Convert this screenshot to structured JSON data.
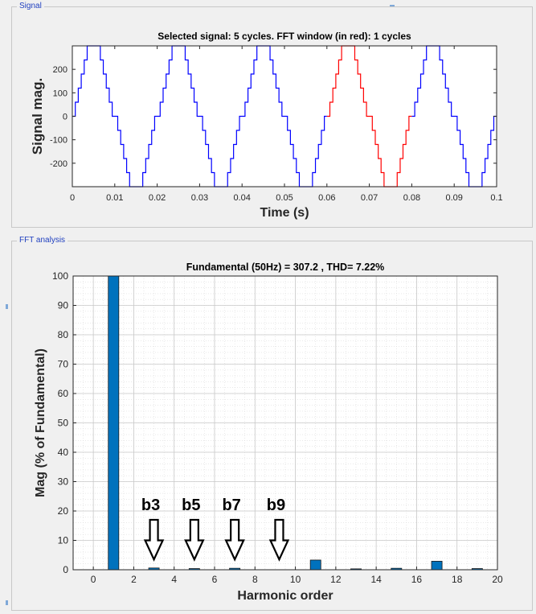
{
  "panels": {
    "signal": "Signal",
    "fft": "FFT analysis"
  },
  "chart_data": [
    {
      "type": "line",
      "title": "Selected signal: 5 cycles. FFT window (in red): 1 cycles",
      "xlabel": "Time (s)",
      "ylabel": "Signal mag.",
      "xlim": [
        0,
        0.1
      ],
      "ylim": [
        -300,
        300
      ],
      "xticks": [
        "0",
        "0.01",
        "0.02",
        "0.03",
        "0.04",
        "0.05",
        "0.06",
        "0.07",
        "0.08",
        "0.09",
        "0.1"
      ],
      "yticks": [
        "200",
        "100",
        "0",
        "-100",
        "-200"
      ],
      "series": [
        {
          "color": "#0000ff",
          "x_range": [
            0,
            0.06
          ]
        },
        {
          "color": "#ff0000",
          "x_range": [
            0.06,
            0.08
          ]
        },
        {
          "color": "#0000ff",
          "x_range": [
            0.08,
            0.1
          ]
        }
      ],
      "frequency_hz": 50,
      "cycles": 5,
      "amplitude_clip": 300
    },
    {
      "type": "bar",
      "title": "Fundamental (50Hz) = 307.2 , THD= 7.22%",
      "xlabel": "Harmonic order",
      "ylabel": "Mag (% of Fundamental)",
      "xlim": [
        -1,
        20
      ],
      "ylim": [
        0,
        100
      ],
      "grid": true,
      "bar_color": "#0072bd",
      "xticks": [
        "0",
        "2",
        "4",
        "6",
        "8",
        "10",
        "12",
        "14",
        "16",
        "18",
        "20"
      ],
      "yticks": [
        "0",
        "10",
        "20",
        "30",
        "40",
        "50",
        "60",
        "70",
        "80",
        "90",
        "100"
      ],
      "x": [
        0,
        1,
        2,
        3,
        4,
        5,
        6,
        7,
        8,
        9,
        10,
        11,
        12,
        13,
        14,
        15,
        16,
        17,
        18,
        19
      ],
      "values": [
        0,
        100,
        0,
        0.6,
        0,
        0.4,
        0,
        0.5,
        0,
        0,
        0,
        3.3,
        0,
        0.3,
        0,
        0.5,
        0,
        2.9,
        0,
        0.4
      ],
      "annotations": [
        {
          "label": "b3",
          "x": 3
        },
        {
          "label": "b5",
          "x": 5
        },
        {
          "label": "b7",
          "x": 7
        },
        {
          "label": "b9",
          "x": 9.2
        }
      ]
    }
  ]
}
